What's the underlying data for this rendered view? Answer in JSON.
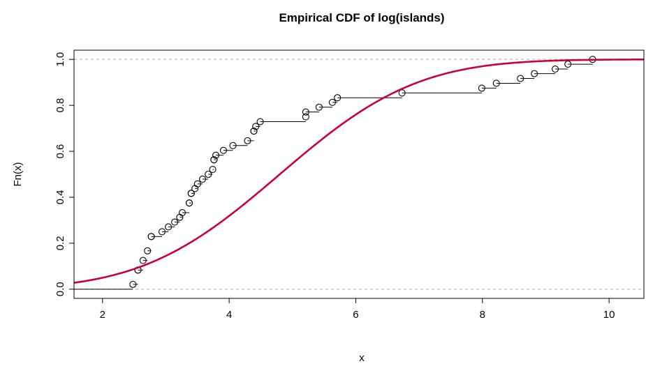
{
  "chart_data": {
    "type": "line",
    "title": "Empirical CDF of log(islands)",
    "xlabel": "x",
    "ylabel": "Fn(x)",
    "xlim": [
      1.55,
      10.55
    ],
    "ylim": [
      -0.04,
      1.04
    ],
    "x_ticks": [
      2,
      4,
      6,
      8,
      10
    ],
    "y_ticks": [
      0.0,
      0.2,
      0.4,
      0.6,
      0.8,
      1.0
    ],
    "x_tick_labels": [
      "2",
      "4",
      "6",
      "8",
      "10"
    ],
    "y_tick_labels": [
      "0.0",
      "0.2",
      "0.4",
      "0.6",
      "0.8",
      "1.0"
    ],
    "grid": false,
    "reference_lines": [
      0,
      1
    ],
    "series": [
      {
        "kind": "ecdf-step",
        "color": "#000000",
        "points": [
          [
            2.48,
            0.021
          ],
          [
            2.56,
            0.083
          ],
          [
            2.56,
            0.083
          ],
          [
            2.64,
            0.125
          ],
          [
            2.71,
            0.167
          ],
          [
            2.77,
            0.229
          ],
          [
            2.77,
            0.229
          ],
          [
            2.94,
            0.25
          ],
          [
            3.04,
            0.271
          ],
          [
            3.14,
            0.292
          ],
          [
            3.22,
            0.313
          ],
          [
            3.26,
            0.333
          ],
          [
            3.37,
            0.375
          ],
          [
            3.37,
            0.375
          ],
          [
            3.4,
            0.417
          ],
          [
            3.4,
            0.417
          ],
          [
            3.46,
            0.438
          ],
          [
            3.5,
            0.458
          ],
          [
            3.58,
            0.479
          ],
          [
            3.67,
            0.5
          ],
          [
            3.74,
            0.521
          ],
          [
            3.76,
            0.563
          ],
          [
            3.76,
            0.563
          ],
          [
            3.79,
            0.583
          ],
          [
            3.91,
            0.604
          ],
          [
            4.06,
            0.625
          ],
          [
            4.29,
            0.646
          ],
          [
            4.39,
            0.688
          ],
          [
            4.39,
            0.688
          ],
          [
            4.42,
            0.708
          ],
          [
            4.49,
            0.729
          ],
          [
            5.21,
            0.75
          ],
          [
            5.21,
            0.771
          ],
          [
            5.42,
            0.792
          ],
          [
            5.63,
            0.813
          ],
          [
            5.71,
            0.833
          ],
          [
            6.73,
            0.854
          ],
          [
            7.99,
            0.875
          ],
          [
            8.22,
            0.896
          ],
          [
            8.6,
            0.917
          ],
          [
            8.82,
            0.938
          ],
          [
            9.15,
            0.958
          ],
          [
            9.35,
            0.979
          ],
          [
            9.74,
            1.0
          ]
        ]
      },
      {
        "kind": "normal-cdf",
        "color": "#cc0033",
        "mean": 4.8,
        "sd": 1.7
      }
    ]
  }
}
